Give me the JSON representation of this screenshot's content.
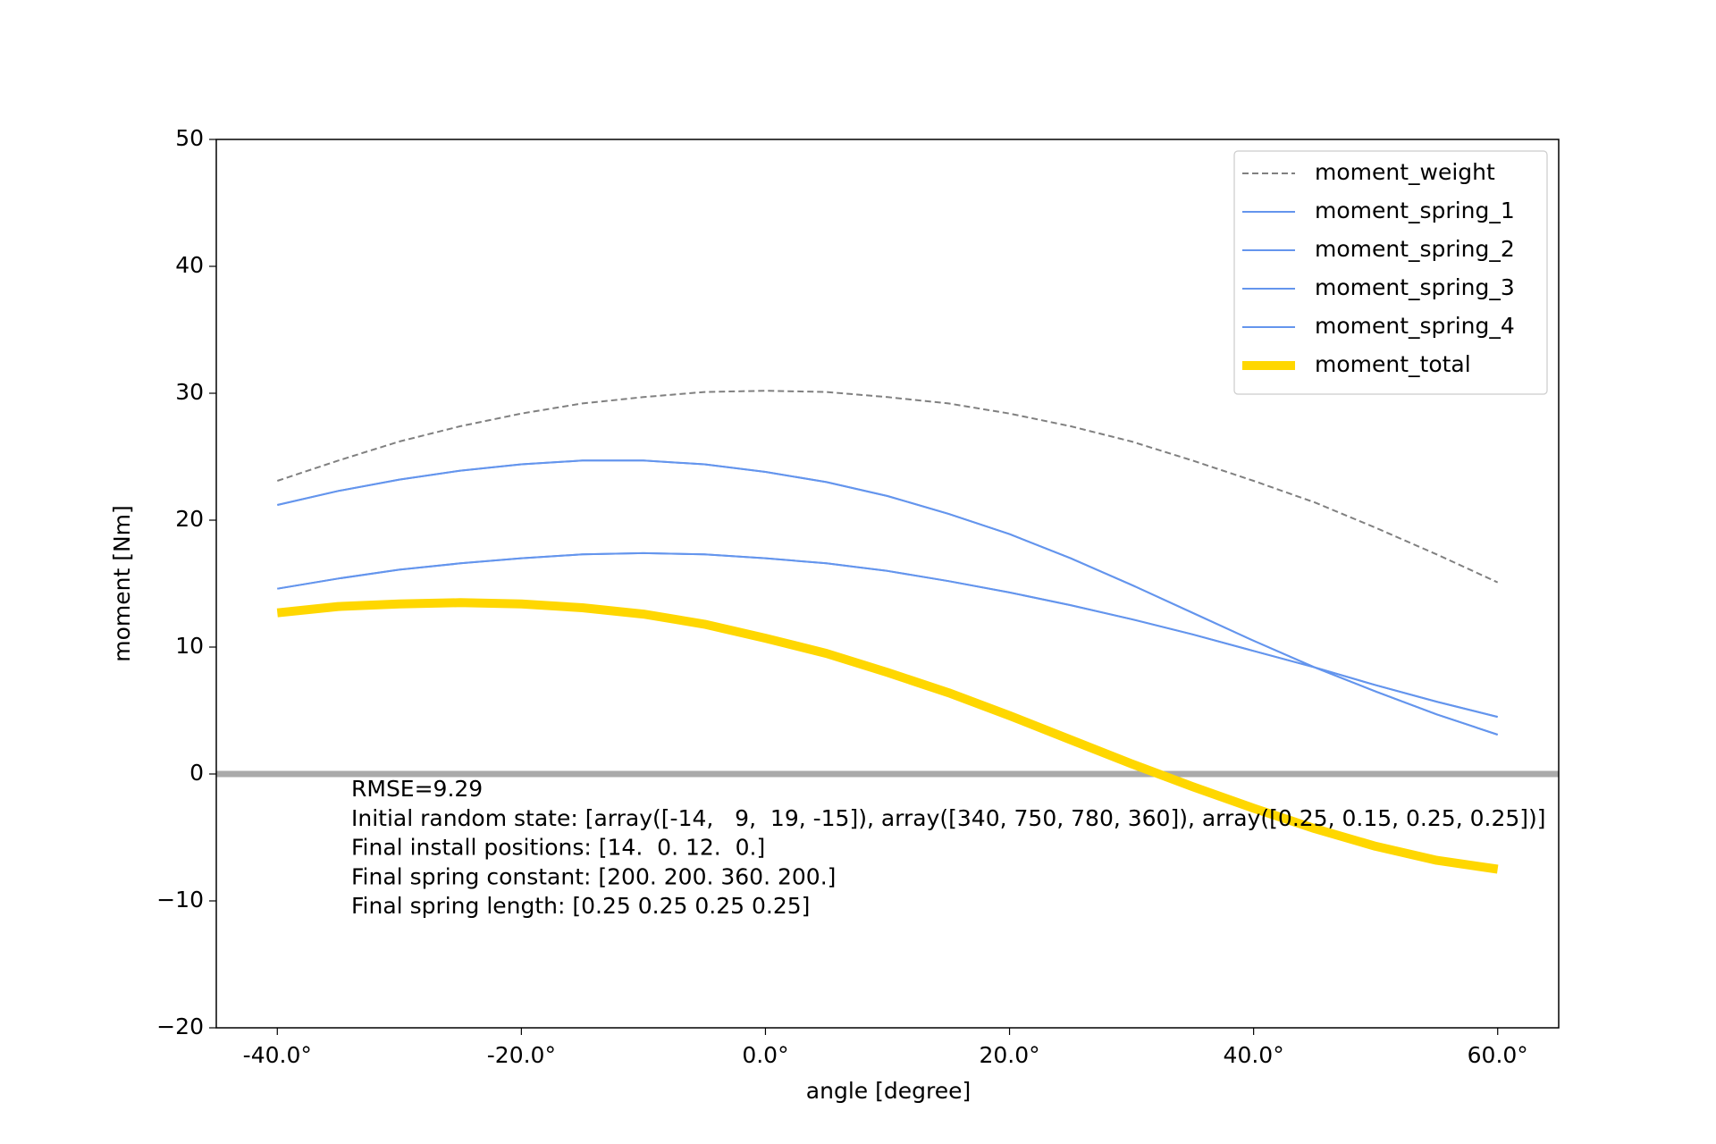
{
  "chart_data": {
    "type": "line",
    "xlabel": "angle [degree]",
    "ylabel": "moment [Nm]",
    "x": [
      -40,
      -35,
      -30,
      -25,
      -20,
      -15,
      -10,
      -5,
      0,
      5,
      10,
      15,
      20,
      25,
      30,
      35,
      40,
      45,
      50,
      55,
      60
    ],
    "series": [
      {
        "name": "moment_weight",
        "color": "#808080",
        "linestyle": "dashed",
        "linewidth": 2,
        "values": [
          23.1,
          24.7,
          26.2,
          27.4,
          28.4,
          29.2,
          29.7,
          30.1,
          30.2,
          30.1,
          29.7,
          29.2,
          28.4,
          27.4,
          26.2,
          24.7,
          23.1,
          21.4,
          19.4,
          17.3,
          15.1
        ]
      },
      {
        "name": "moment_spring_1",
        "color": "#6495ed",
        "linestyle": "solid",
        "linewidth": 2,
        "values": [
          21.2,
          22.3,
          23.2,
          23.9,
          24.4,
          24.7,
          24.7,
          24.4,
          23.8,
          23.0,
          21.9,
          20.5,
          18.9,
          17.0,
          14.9,
          12.7,
          10.5,
          8.4,
          6.5,
          4.7,
          3.1
        ]
      },
      {
        "name": "moment_spring_2",
        "color": "#6495ed",
        "linestyle": "solid",
        "linewidth": 2,
        "values": [
          14.6,
          15.4,
          16.1,
          16.6,
          17.0,
          17.3,
          17.4,
          17.3,
          17.0,
          16.6,
          16.0,
          15.2,
          14.3,
          13.3,
          12.2,
          11.0,
          9.7,
          8.4,
          7.0,
          5.7,
          4.5
        ]
      },
      {
        "name": "moment_spring_3",
        "color": "#6495ed",
        "linestyle": "solid",
        "linewidth": 2,
        "values": [
          21.2,
          22.3,
          23.2,
          23.9,
          24.4,
          24.7,
          24.7,
          24.4,
          23.8,
          23.0,
          21.9,
          20.5,
          18.9,
          17.0,
          14.9,
          12.7,
          10.5,
          8.4,
          6.5,
          4.7,
          3.1
        ]
      },
      {
        "name": "moment_spring_4",
        "color": "#6495ed",
        "linestyle": "solid",
        "linewidth": 2,
        "values": [
          14.6,
          15.4,
          16.1,
          16.6,
          17.0,
          17.3,
          17.4,
          17.3,
          17.0,
          16.6,
          16.0,
          15.2,
          14.3,
          13.3,
          12.2,
          11.0,
          9.7,
          8.4,
          7.0,
          5.7,
          4.5
        ]
      },
      {
        "name": "moment_total",
        "color": "#ffd700",
        "linestyle": "solid",
        "linewidth": 10,
        "values": [
          12.7,
          13.2,
          13.4,
          13.5,
          13.4,
          13.1,
          12.6,
          11.8,
          10.7,
          9.5,
          8.0,
          6.4,
          4.6,
          2.7,
          0.8,
          -1.0,
          -2.7,
          -4.3,
          -5.7,
          -6.8,
          -7.5
        ]
      }
    ],
    "hline": {
      "y": 0,
      "color": "#aaaaaa",
      "linewidth": 7
    },
    "xlim": [
      -45,
      65
    ],
    "ylim": [
      -20,
      50
    ],
    "xticks": [
      {
        "value": -40,
        "label": "-40.0°"
      },
      {
        "value": -20,
        "label": "-20.0°"
      },
      {
        "value": 0,
        "label": "0.0°"
      },
      {
        "value": 20,
        "label": "20.0°"
      },
      {
        "value": 40,
        "label": "40.0°"
      },
      {
        "value": 60,
        "label": "60.0°"
      }
    ],
    "yticks": [
      {
        "value": -20,
        "label": "−20"
      },
      {
        "value": -10,
        "label": "−10"
      },
      0,
      10,
      20,
      30,
      40,
      50
    ],
    "grid": false,
    "legend": "upper right",
    "annotations": [
      "RMSE=9.29",
      "Initial random state: [array([-14,   9,  19, -15]), array([340, 750, 780, 360]), array([0.25, 0.15, 0.25, 0.25])]",
      "Final install positions: [14.  0. 12.  0.]",
      "Final spring constant: [200. 200. 360. 200.]",
      "Final spring length: [0.25 0.25 0.25 0.25]"
    ]
  }
}
